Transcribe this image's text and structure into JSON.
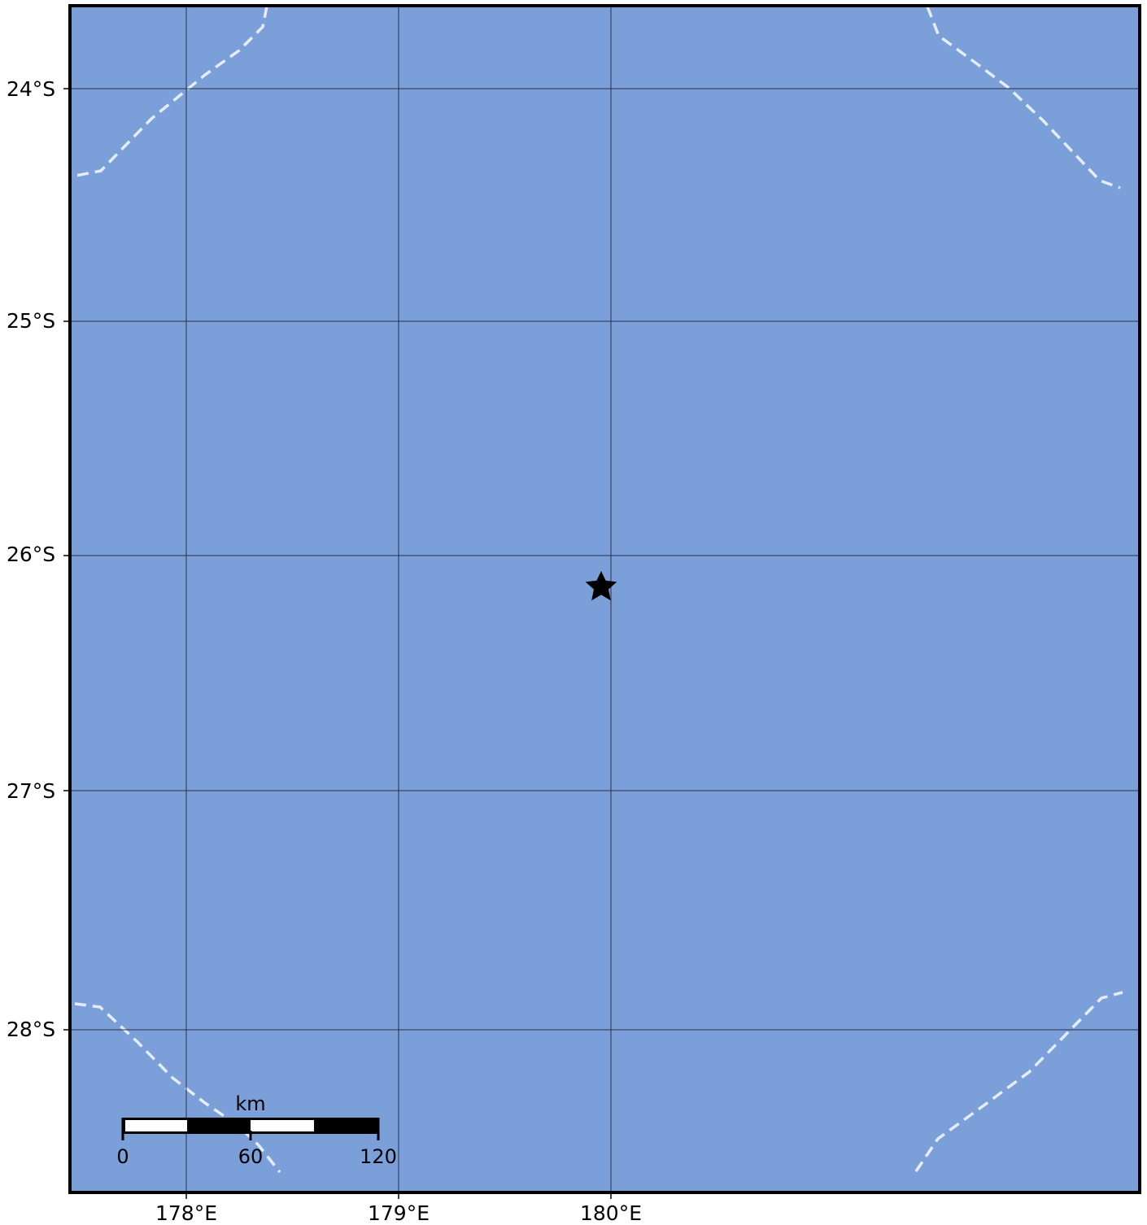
{
  "map": {
    "colors": {
      "ocean": "#7ba0d9",
      "graticule": "#1a1a2e",
      "boundary": "#e6ecf7",
      "frame": "#000000",
      "marker": "#000000"
    },
    "lat_labels": [
      "24°S",
      "25°S",
      "26°S",
      "27°S",
      "28°S"
    ],
    "lon_labels": [
      "178°E",
      "179°E",
      "180°E"
    ],
    "marker": {
      "icon": "star-icon",
      "lon": 179.95,
      "lat": -26.13
    },
    "scale_bar": {
      "unit": "km",
      "ticks": [
        "0",
        "60",
        "120"
      ]
    }
  }
}
